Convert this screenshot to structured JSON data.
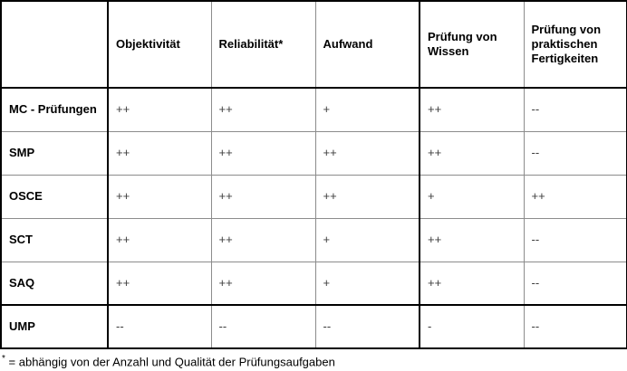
{
  "table": {
    "corner": "",
    "columns": [
      "Objektivität",
      "Reliabilität*",
      "Aufwand",
      "Prüfung von Wissen",
      "Prüfung von praktischen Fertigkeiten"
    ],
    "rows": [
      {
        "label": "MC - Prüfungen",
        "values": [
          "++",
          "++",
          "+",
          "++",
          "--"
        ]
      },
      {
        "label": "SMP",
        "values": [
          "++",
          "++",
          "++",
          "++",
          "--"
        ]
      },
      {
        "label": "OSCE",
        "values": [
          "++",
          "++",
          "++",
          "+",
          "++"
        ]
      },
      {
        "label": "SCT",
        "values": [
          "++",
          "++",
          "+",
          "++",
          "--"
        ]
      },
      {
        "label": "SAQ",
        "values": [
          "++",
          "++",
          "+",
          "++",
          "--"
        ]
      },
      {
        "label": "UMP",
        "values": [
          "--",
          "--",
          "--",
          "-",
          "--"
        ]
      }
    ]
  },
  "footnote": {
    "marker": "*",
    "text": "= abhängig von der Anzahl und Qualität der Prüfungsaufgaben"
  },
  "colors": {
    "background": "#ffffff",
    "grid_light": "#8c8c8c",
    "grid_dark": "#000000",
    "label_text": "#000000",
    "value_text": "#3d3d3d"
  }
}
